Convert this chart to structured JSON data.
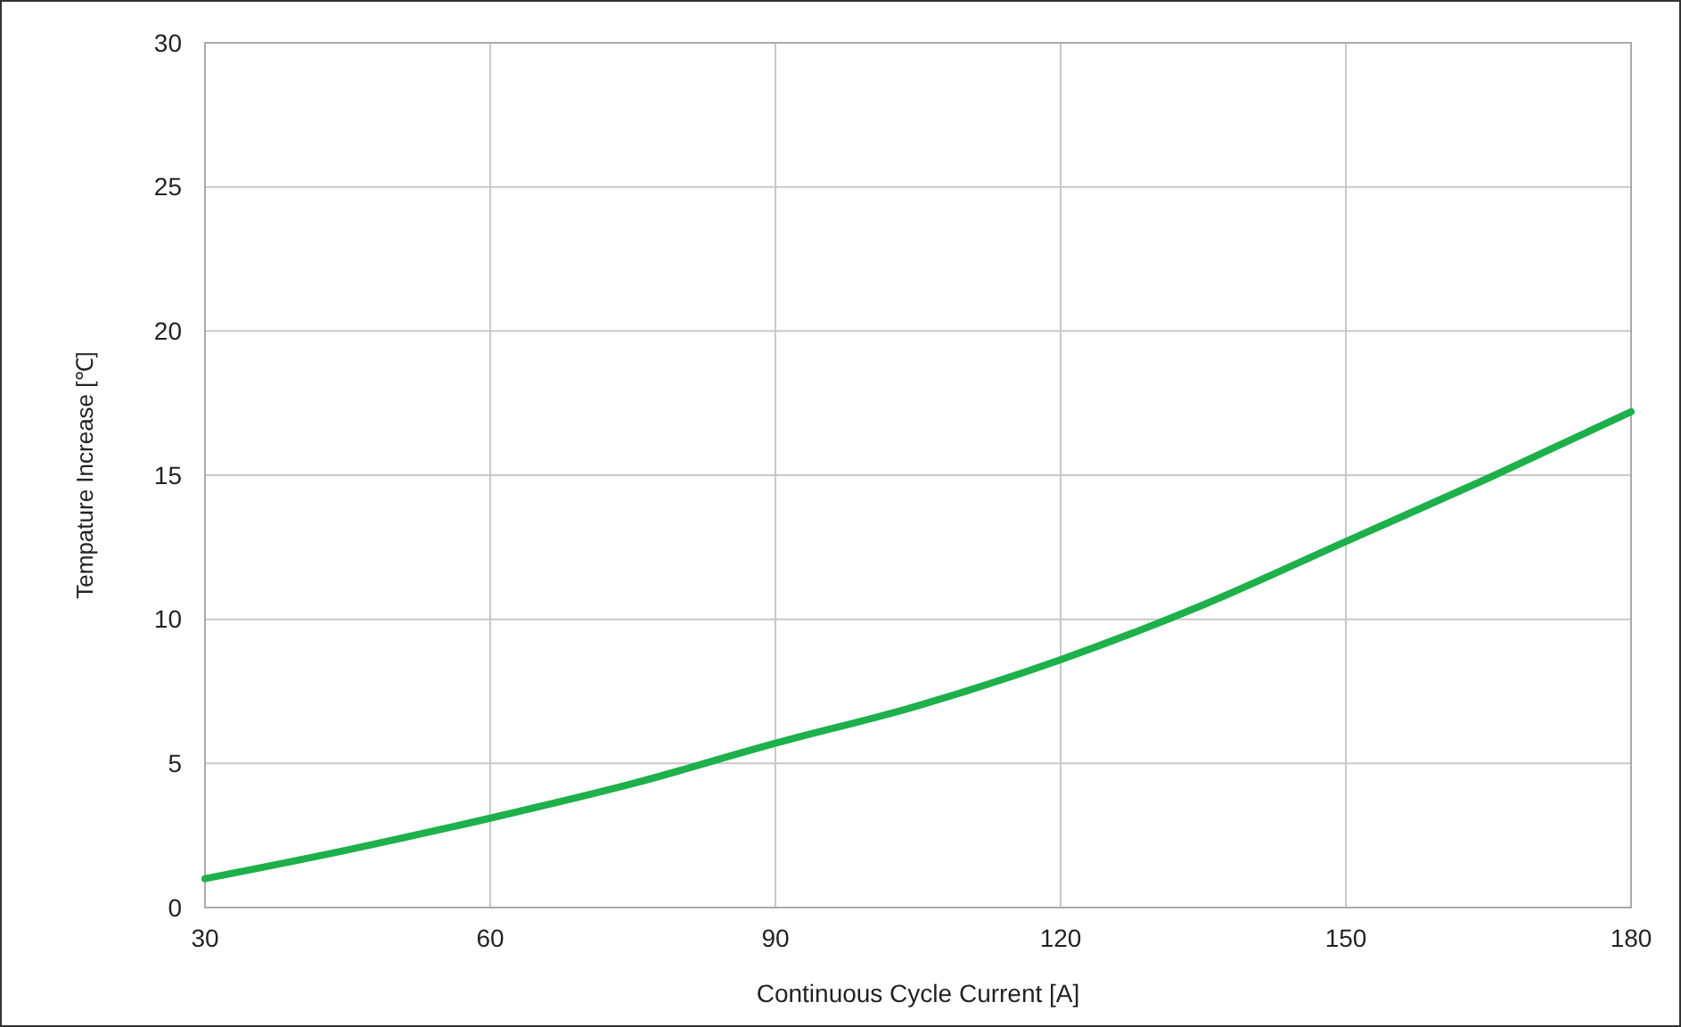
{
  "chart_data": {
    "type": "line",
    "xlabel": "Continuous Cycle Current [A]",
    "ylabel": "Tempature Increase [℃]",
    "x": [
      30,
      45,
      60,
      75,
      90,
      105,
      120,
      135,
      150,
      165,
      180
    ],
    "series": [
      {
        "color": "#1db04b",
        "values": [
          1.0,
          2.0,
          3.1,
          4.3,
          5.7,
          7.0,
          8.6,
          10.5,
          12.7,
          14.9,
          17.2
        ]
      }
    ],
    "xlim": [
      30,
      180
    ],
    "xticks": [
      30,
      60,
      90,
      120,
      150,
      180
    ],
    "ylim": [
      0,
      30
    ],
    "yticks": [
      0,
      5,
      10,
      15,
      20,
      25,
      30
    ],
    "grid": true,
    "marker": "none",
    "line_style": "solid"
  }
}
